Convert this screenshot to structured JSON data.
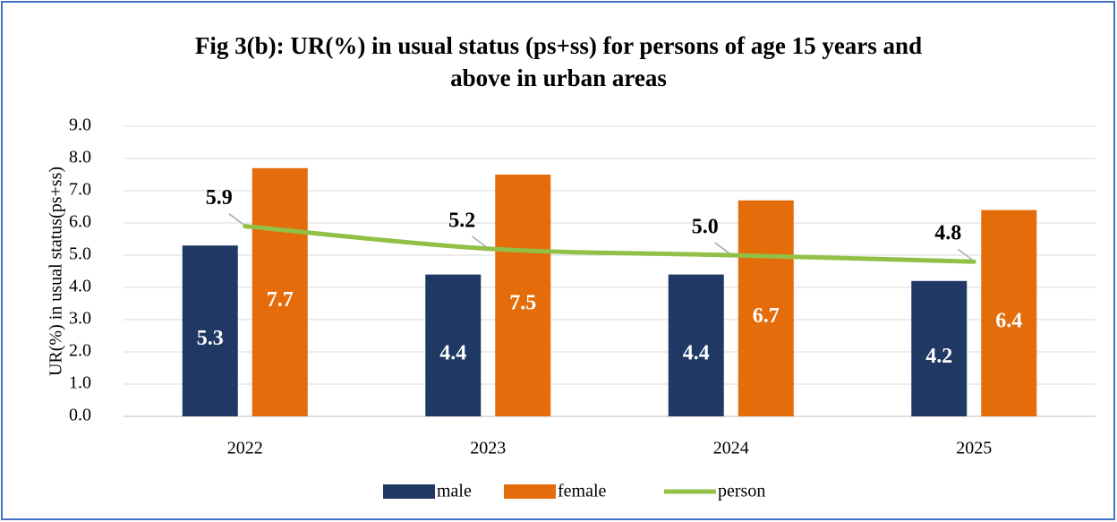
{
  "chart_data": {
    "type": "bar",
    "title": "Fig 3(b): UR(%) in usual status (ps+ss) for persons of age 15 years and",
    "title_line2": "above in urban areas",
    "y_axis_label": "UR(%) in usual status(ps+ss)",
    "categories": [
      "2022",
      "2023",
      "2024",
      "2025"
    ],
    "series": [
      {
        "name": "male",
        "color": "#1f3864",
        "values": [
          5.3,
          4.4,
          4.4,
          4.2
        ],
        "value_labels": [
          "5.3",
          "4.4",
          "4.4",
          "4.2"
        ]
      },
      {
        "name": "female",
        "color": "#e46c0a",
        "values": [
          7.7,
          7.5,
          6.7,
          6.4
        ],
        "value_labels": [
          "7.7",
          "7.5",
          "6.7",
          "6.4"
        ]
      },
      {
        "name": "person",
        "type": "line",
        "color": "#92c047",
        "values": [
          5.9,
          5.2,
          5,
          4.8
        ],
        "value_labels": [
          "5.9",
          "5.2",
          "5.0",
          "4.8"
        ]
      }
    ],
    "ylim": [
      0,
      9
    ],
    "yticks": [
      {
        "value": 0,
        "label": "0.0"
      },
      {
        "value": 1,
        "label": "1.0"
      },
      {
        "value": 2,
        "label": "2.0"
      },
      {
        "value": 3,
        "label": "3.0"
      },
      {
        "value": 4,
        "label": "4.0"
      },
      {
        "value": 5,
        "label": "5.0"
      },
      {
        "value": 6,
        "label": "6.0"
      },
      {
        "value": 7,
        "label": "7.0"
      },
      {
        "value": 8,
        "label": "8.0"
      },
      {
        "value": 9,
        "label": "9.0"
      }
    ],
    "grid": true,
    "legend": "bottom"
  }
}
